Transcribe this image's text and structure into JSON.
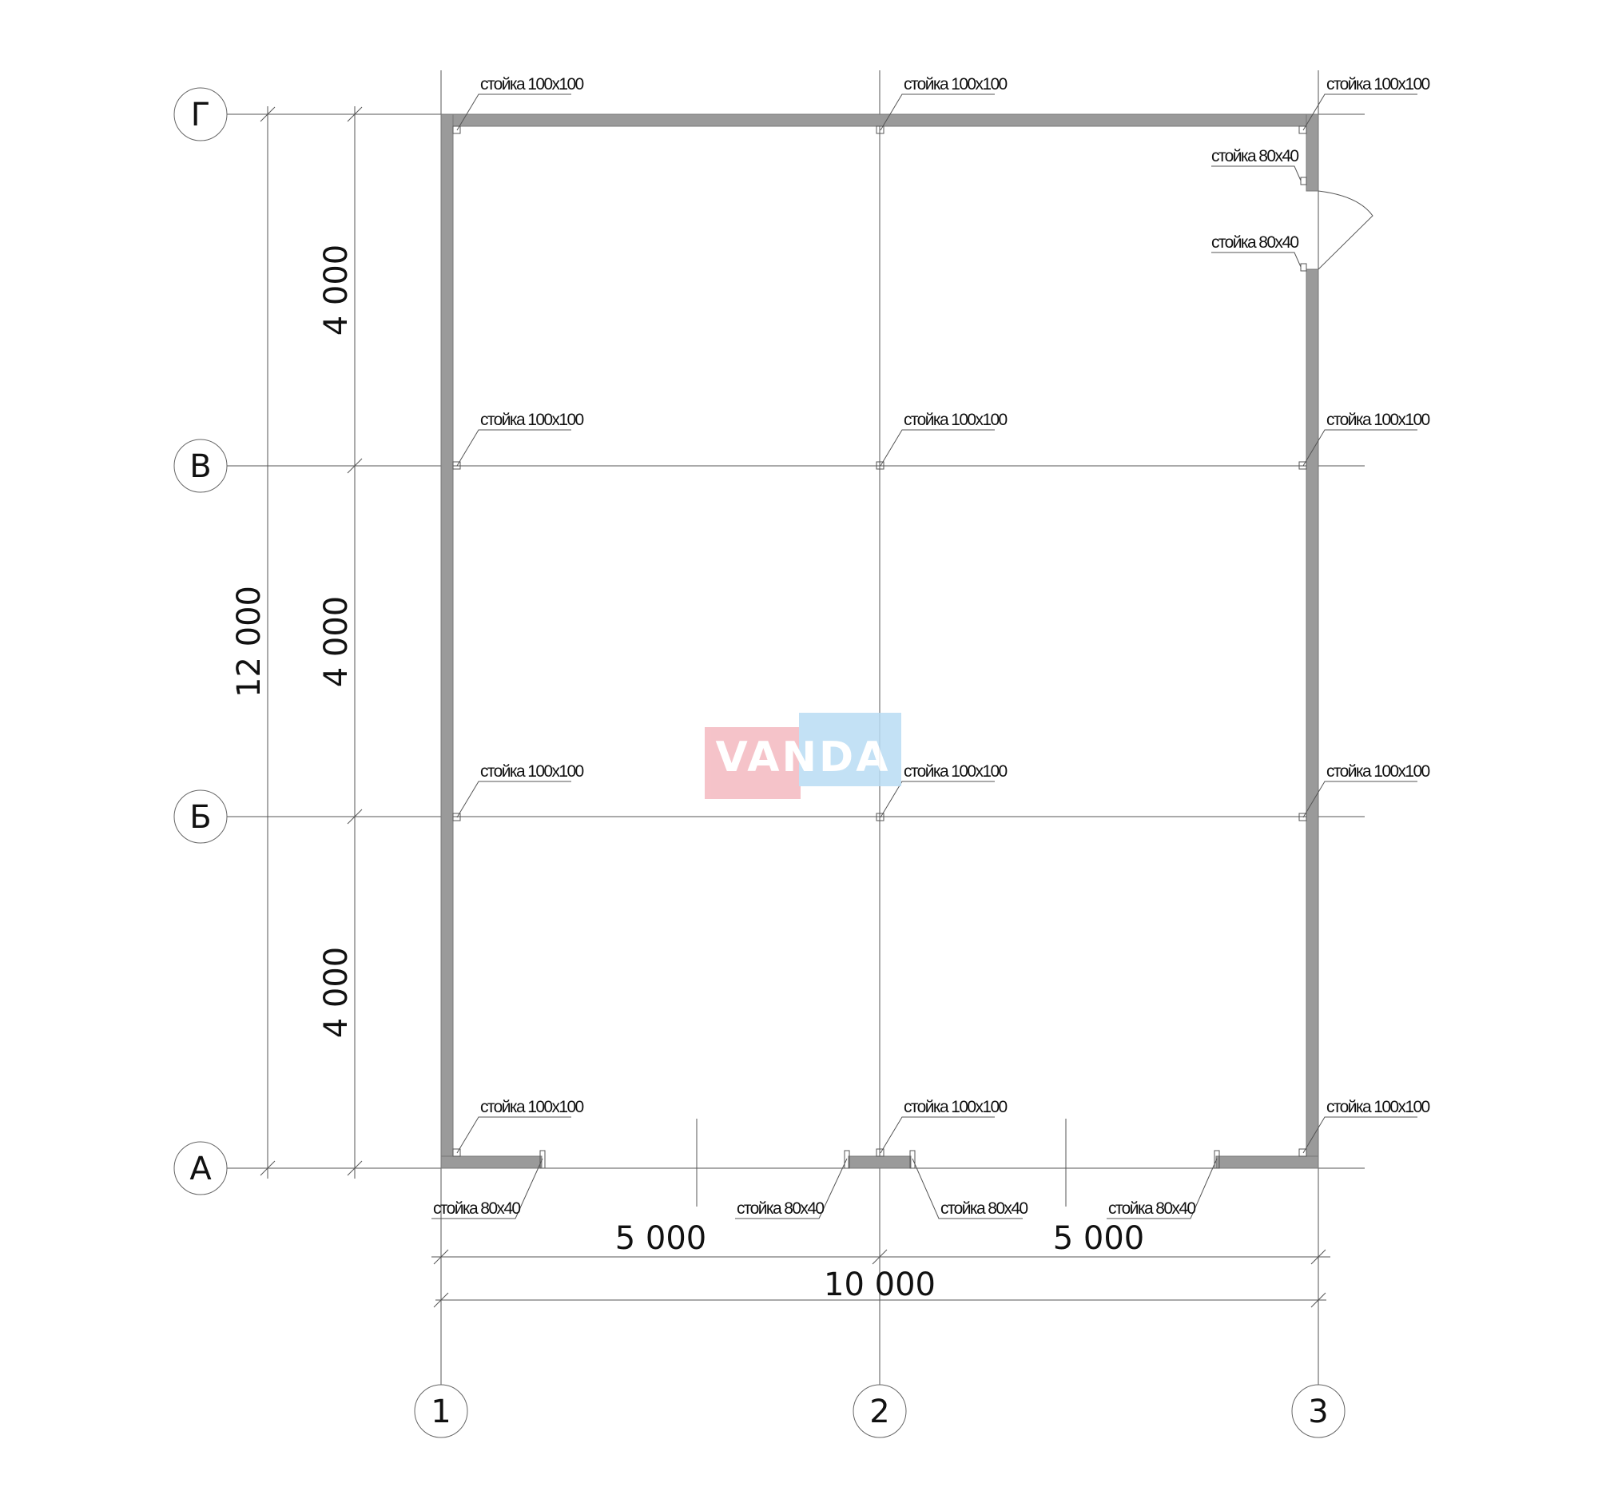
{
  "axes_letters": [
    "А",
    "Б",
    "В",
    "Г"
  ],
  "axes_numbers": [
    "1",
    "2",
    "3"
  ],
  "dimensions": {
    "vertical_total": "12 000",
    "vertical_parts": [
      "4 000",
      "4 000",
      "4 000"
    ],
    "horizontal_parts": [
      "5 000",
      "5 000"
    ],
    "horizontal_total": "10 000"
  },
  "post_100": "стойка 100x100",
  "post_80": "стойка 80x40",
  "watermark": "VANDA",
  "colors": {
    "wall": "#9a9a9a",
    "line": "#555555",
    "watermark_pink": "#f4b9c0",
    "watermark_blue": "#b9dcf4"
  }
}
